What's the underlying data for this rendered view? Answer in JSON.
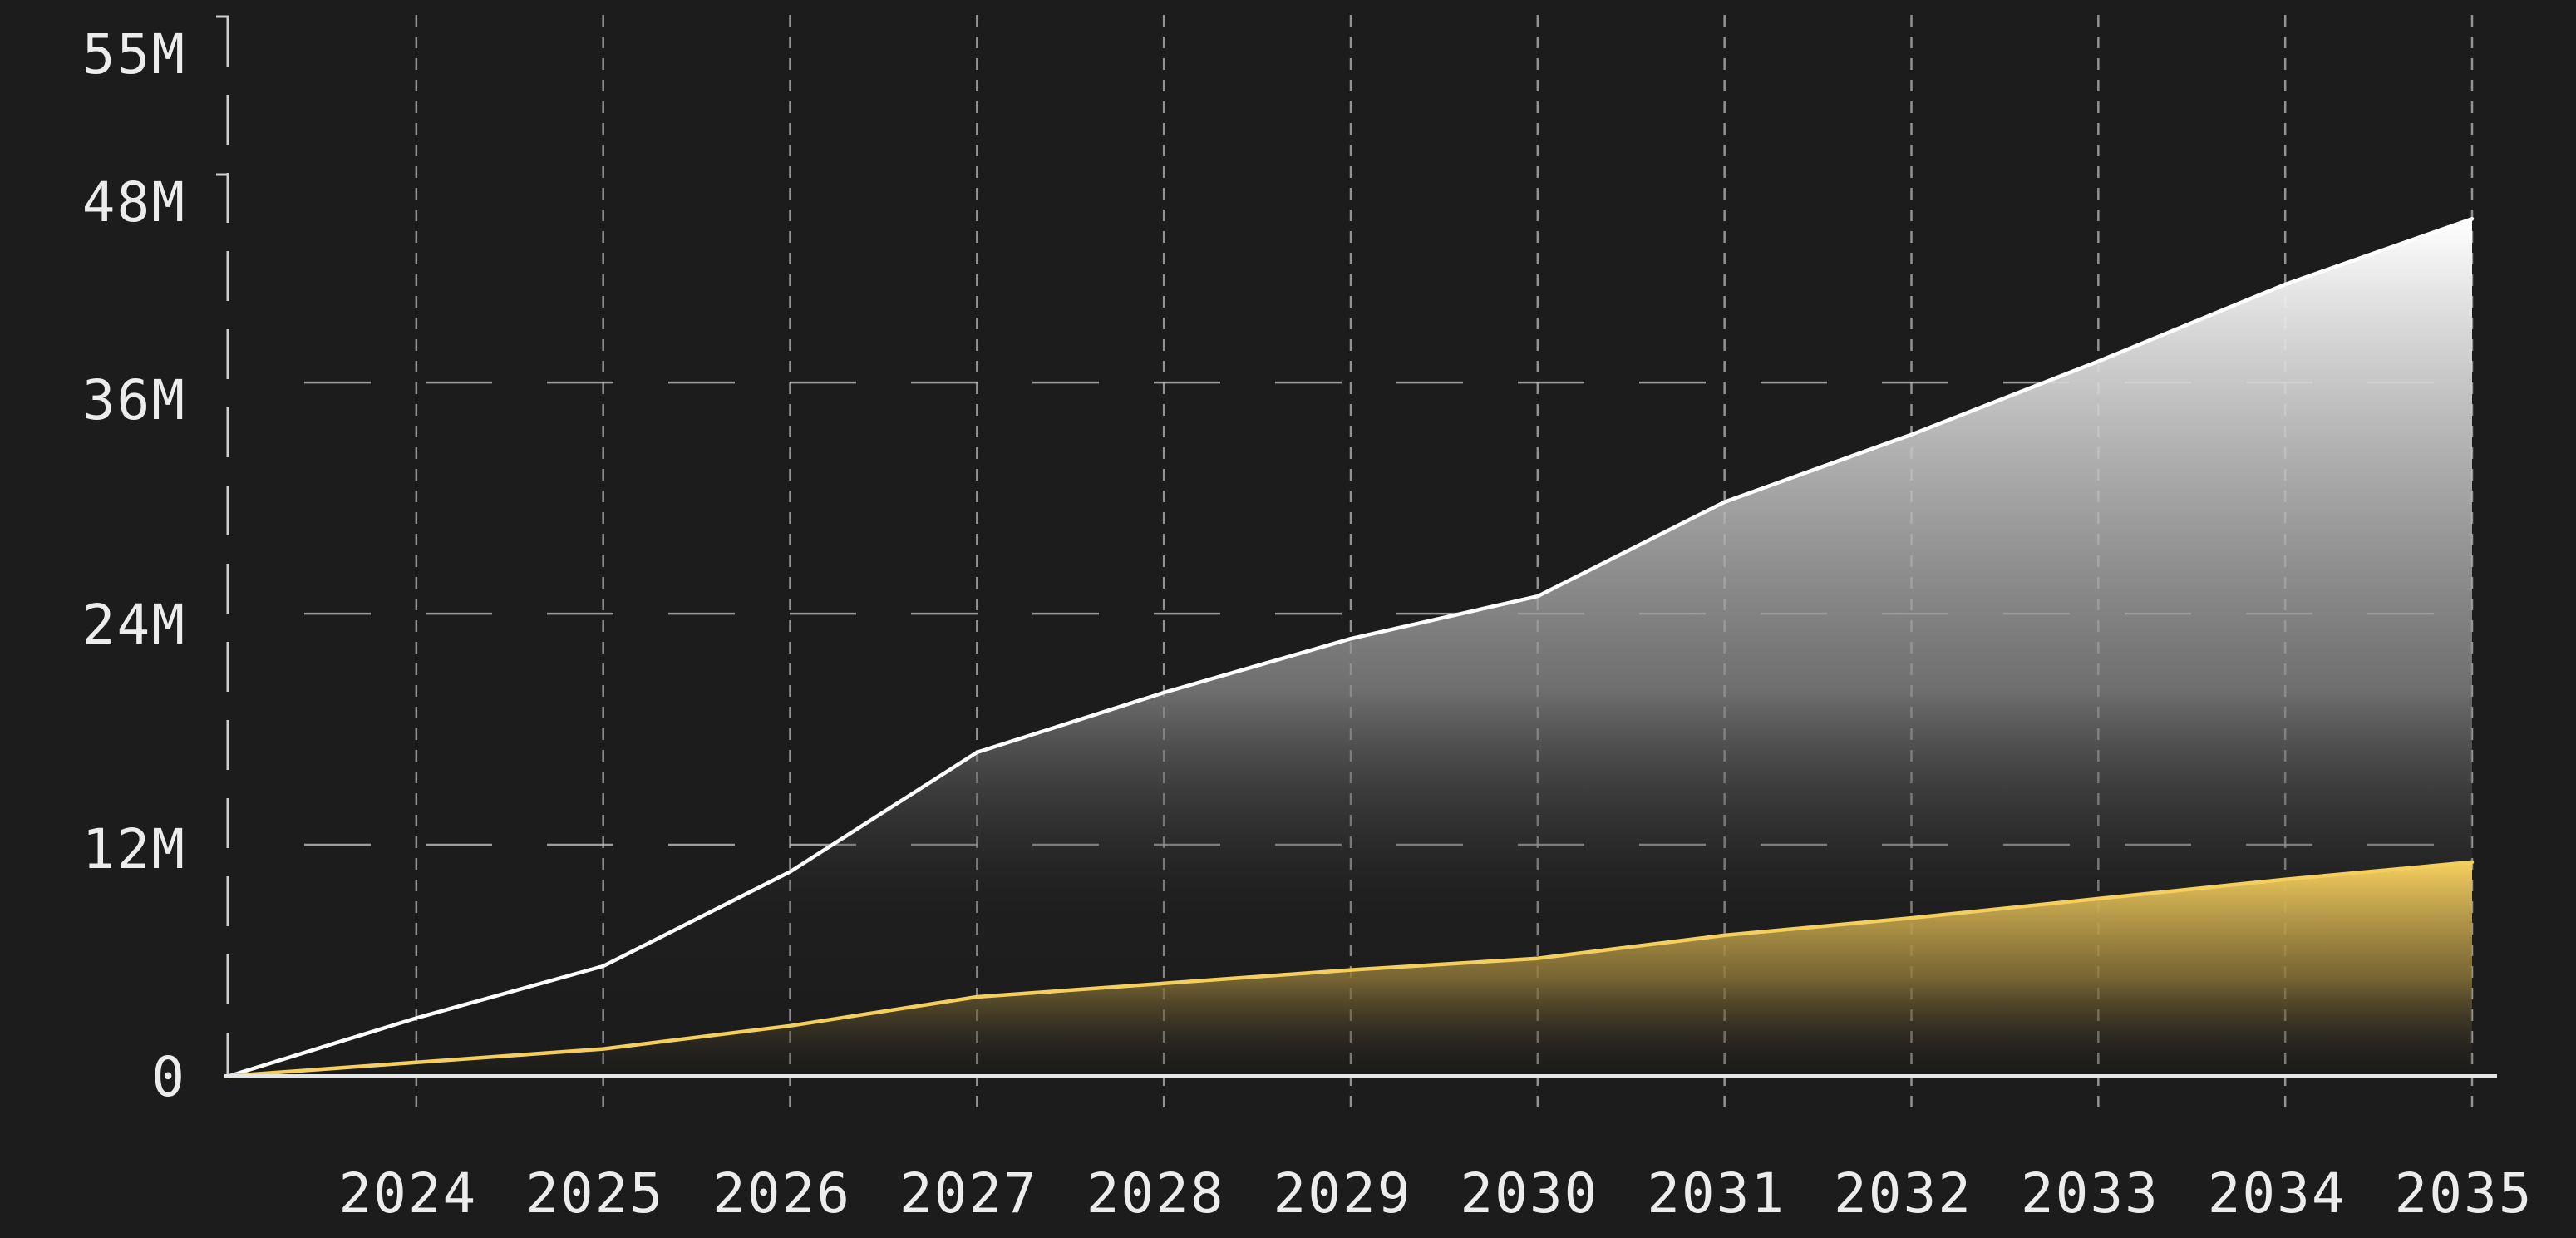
{
  "chart_data": {
    "type": "area",
    "title": "",
    "xlabel": "",
    "ylabel": "",
    "x": [
      "",
      "2024",
      "2025",
      "2026",
      "2027",
      "2028",
      "2029",
      "2030",
      "2031",
      "2032",
      "2033",
      "2034",
      "2035"
    ],
    "xticks": [
      "2024",
      "2025",
      "2026",
      "2027",
      "2028",
      "2029",
      "2030",
      "2031",
      "2032",
      "2033",
      "2034",
      "2035"
    ],
    "yticks": [
      {
        "value": 0,
        "label": "0"
      },
      {
        "value": 12,
        "label": "12M"
      },
      {
        "value": 24,
        "label": "24M"
      },
      {
        "value": 36,
        "label": "36M"
      },
      {
        "value": 48,
        "label": "48M"
      },
      {
        "value": 55,
        "label": "55M"
      }
    ],
    "ylim": [
      0,
      55
    ],
    "grid": true,
    "legend": "none",
    "series": [
      {
        "color": "#ffffff",
        "values": [
          0,
          3,
          5.7,
          10.6,
          16.8,
          19.9,
          22.7,
          24.9,
          29.8,
          33.3,
          37.1,
          41.1,
          44.5
        ]
      },
      {
        "color": "#f5cf5e",
        "values": [
          0,
          0.7,
          1.4,
          2.6,
          4.1,
          4.8,
          5.5,
          6.1,
          7.3,
          8.2,
          9.2,
          10.2,
          11.1
        ]
      }
    ]
  }
}
